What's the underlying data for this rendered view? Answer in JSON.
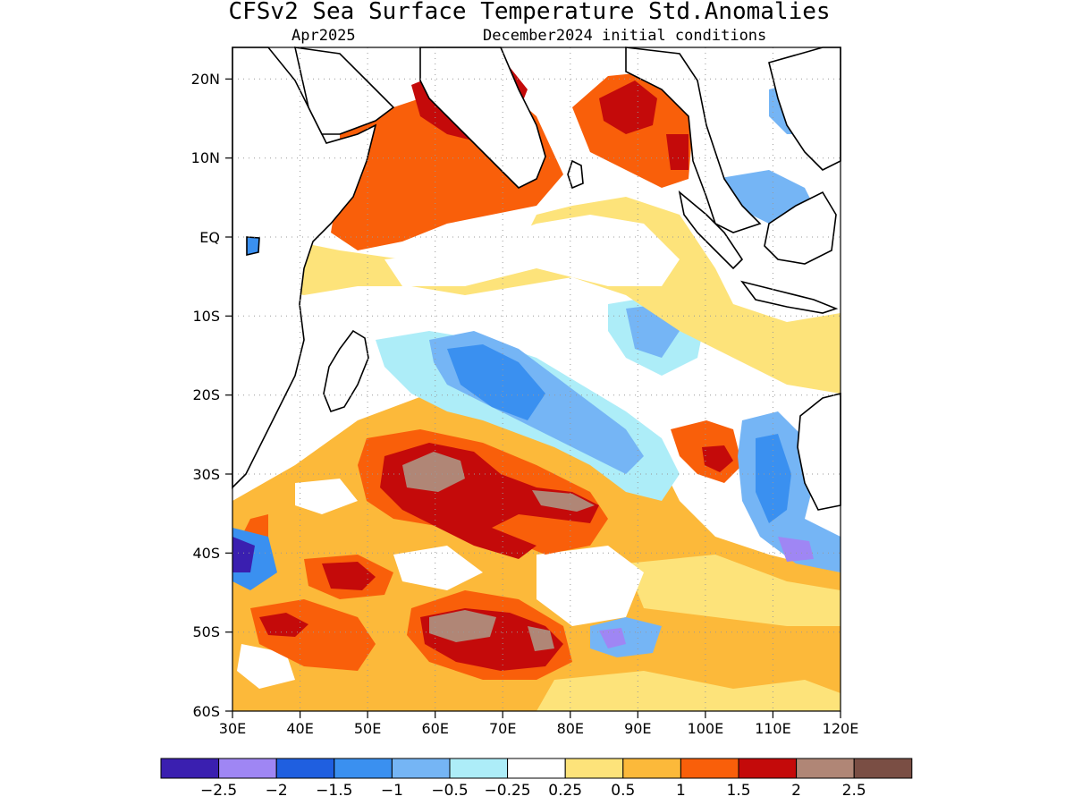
{
  "title": "CFSv2 Sea Surface Temperature Std.Anomalies",
  "valid_month": "Apr2025",
  "initial_conditions": "December2024 initial conditions",
  "map": {
    "lon_range": [
      30,
      120
    ],
    "lat_range": [
      -60,
      24
    ],
    "x_ticks": [
      "30E",
      "40E",
      "50E",
      "60E",
      "70E",
      "80E",
      "90E",
      "100E",
      "110E",
      "120E"
    ],
    "y_ticks": [
      "20N",
      "10N",
      "EQ",
      "10S",
      "20S",
      "30S",
      "40S",
      "50S",
      "60S"
    ],
    "grid": "dotted"
  },
  "colorbar": {
    "colors": [
      "#3a1fb0",
      "#9f86f4",
      "#1f5fe0",
      "#3a90f0",
      "#75b5f5",
      "#adedf8",
      "#ffffff",
      "#fde37a",
      "#fcb93a",
      "#f95f0a",
      "#c40a0a",
      "#b08676",
      "#7a4e44"
    ],
    "labels": [
      "−2.5",
      "−2",
      "−1.5",
      "−1",
      "−0.5",
      "−0.25",
      "0.25",
      "0.5",
      "1",
      "1.5",
      "2",
      "2.5"
    ]
  }
}
